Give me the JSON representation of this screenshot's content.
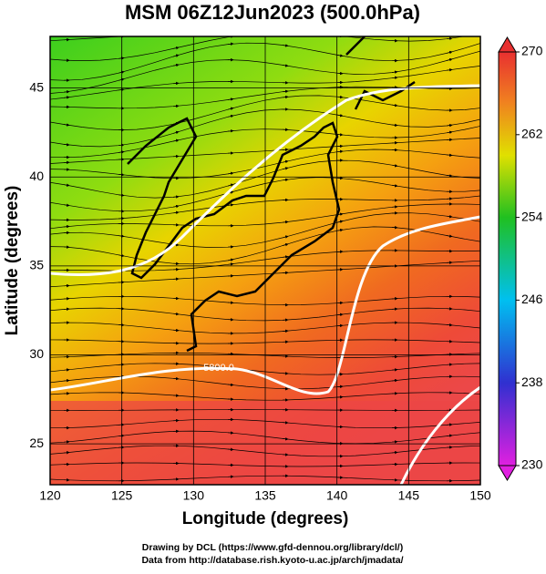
{
  "title": "MSM 06Z12Jun2023 (500.0hPa)",
  "x_axis": {
    "label": "Longitude (degrees)",
    "range": [
      120,
      150
    ],
    "ticks": [
      120,
      125,
      130,
      135,
      140,
      145,
      150
    ]
  },
  "y_axis": {
    "label": "Latitude  (degrees)",
    "range": [
      22.7,
      47.9
    ],
    "ticks": [
      25,
      30,
      35,
      40,
      45
    ]
  },
  "colorbar": {
    "range": [
      230,
      270
    ],
    "ticks": [
      230,
      238,
      246,
      254,
      262,
      270
    ]
  },
  "contour_labels": [
    "5800.0"
  ],
  "footer": [
    "Drawing by DCL (https://www.gfd-dennou.org/library/dcl/)",
    "Data from http://database.rish.kyoto-u.ac.jp/arch/jmadata/"
  ]
}
